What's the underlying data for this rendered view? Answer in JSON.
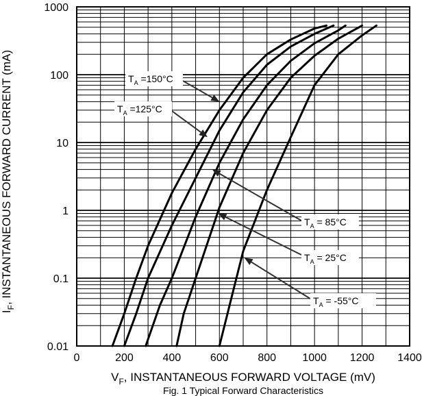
{
  "chart_data": {
    "type": "line",
    "title": "",
    "caption": "Fig. 1 Typical Forward Characteristics",
    "xlabel": {
      "main": "V",
      "sub": "F",
      "rest": ", INSTANTANEOUS FORWARD VOLTAGE (mV)"
    },
    "ylabel": {
      "main": "I",
      "sub": "F",
      "rest": ", INSTANTANEOUS FORWARD CURRENT (mA)"
    },
    "xlim": [
      0,
      1400
    ],
    "ylim": [
      0.01,
      1000
    ],
    "y_scale": "log",
    "grid": true,
    "x_ticks": [
      "0",
      "200",
      "400",
      "600",
      "800",
      "1000",
      "1200",
      "1400"
    ],
    "y_ticks": [
      "0.01",
      "0.1",
      "1",
      "10",
      "100",
      "1000"
    ],
    "series": [
      {
        "name": "TA =150°C",
        "label": {
          "main": "T",
          "sub": "A",
          "rest": " =150°C"
        },
        "pts": [
          [
            150,
            0.01
          ],
          [
            200,
            0.03
          ],
          [
            250,
            0.1
          ],
          [
            300,
            0.3
          ],
          [
            400,
            1.8
          ],
          [
            500,
            8
          ],
          [
            600,
            30
          ],
          [
            700,
            90
          ],
          [
            800,
            200
          ],
          [
            900,
            330
          ],
          [
            1000,
            480
          ],
          [
            1050,
            530
          ]
        ]
      },
      {
        "name": "TA =125°C",
        "label": {
          "main": "T",
          "sub": "A",
          "rest": " =125°C"
        },
        "pts": [
          [
            200,
            0.01
          ],
          [
            250,
            0.03
          ],
          [
            300,
            0.1
          ],
          [
            400,
            0.6
          ],
          [
            500,
            3
          ],
          [
            600,
            15
          ],
          [
            700,
            55
          ],
          [
            800,
            140
          ],
          [
            900,
            260
          ],
          [
            1000,
            400
          ],
          [
            1080,
            530
          ]
        ]
      },
      {
        "name": "TA = 85°C",
        "label": {
          "main": "T",
          "sub": "A",
          "rest": " = 85°C"
        },
        "pts": [
          [
            290,
            0.01
          ],
          [
            350,
            0.04
          ],
          [
            400,
            0.1
          ],
          [
            500,
            0.8
          ],
          [
            600,
            5
          ],
          [
            700,
            22
          ],
          [
            800,
            70
          ],
          [
            900,
            160
          ],
          [
            1000,
            290
          ],
          [
            1100,
            450
          ],
          [
            1130,
            530
          ]
        ]
      },
      {
        "name": "TA = 25°C",
        "label": {
          "main": "T",
          "sub": "A",
          "rest": " = 25°C"
        },
        "pts": [
          [
            420,
            0.01
          ],
          [
            450,
            0.03
          ],
          [
            500,
            0.1
          ],
          [
            600,
            1.1
          ],
          [
            700,
            7
          ],
          [
            800,
            30
          ],
          [
            900,
            90
          ],
          [
            1000,
            190
          ],
          [
            1100,
            340
          ],
          [
            1200,
            530
          ]
        ]
      },
      {
        "name": "TA = -55°C",
        "label": {
          "main": "T",
          "sub": "A",
          "rest": " = -55°C"
        },
        "pts": [
          [
            600,
            0.01
          ],
          [
            650,
            0.05
          ],
          [
            700,
            0.25
          ],
          [
            800,
            2
          ],
          [
            900,
            12
          ],
          [
            1000,
            70
          ],
          [
            1100,
            200
          ],
          [
            1200,
            380
          ],
          [
            1260,
            530
          ]
        ]
      }
    ]
  }
}
